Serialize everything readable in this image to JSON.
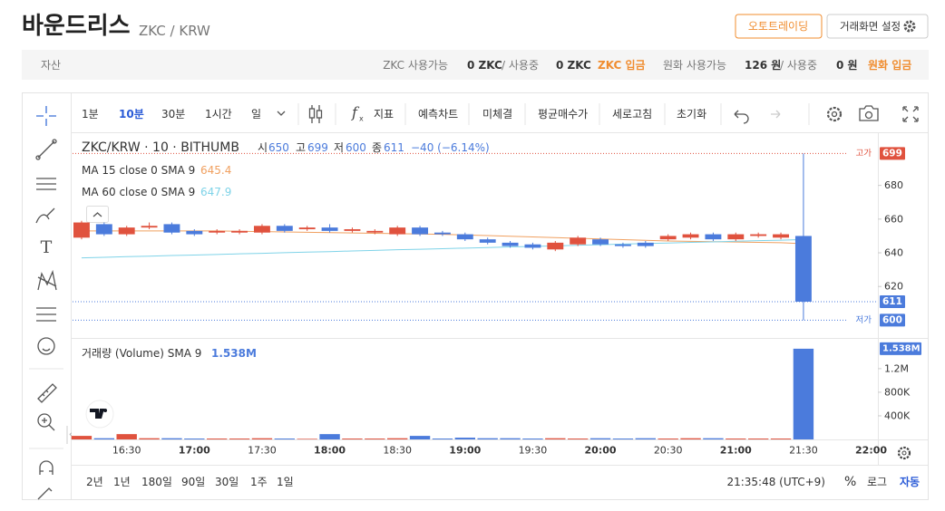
{
  "header": {
    "title": "바운드리스",
    "pair": "ZKC / KRW",
    "buttons": [
      "오토트레이딩",
      "거래화면 설정"
    ]
  },
  "assets": {
    "label": "자산",
    "items": [
      {
        "label": "ZKC 사용가능",
        "available": "0 ZKC",
        "in_use_label": "/ 사용중",
        "in_use": "0 ZKC",
        "deposit": "ZKC 입금"
      },
      {
        "label": "원화 사용가능",
        "available": "126 원",
        "in_use_label": "/ 사용중",
        "in_use": "0 원",
        "deposit": "원화 입금"
      }
    ]
  },
  "toolbar": {
    "intervals": [
      "1분",
      "10분",
      "30분",
      "1시간",
      "일"
    ],
    "fx": "f",
    "tools": [
      "지표",
      "예측차트",
      "미체결",
      "평균매수가",
      "세로고침",
      "초기화"
    ]
  },
  "chart_data": {
    "type": "candlestick",
    "title": "ZKC/KRW · 10 · BITHUMB",
    "ohlc_labels": [
      "시",
      "고",
      "저",
      "종"
    ],
    "change_label": "−40 (−6.14%)",
    "up_color": "#e0523e",
    "down_color": "#4b7bdc",
    "x": [
      "16:10",
      "16:20",
      "16:30",
      "16:40",
      "16:50",
      "17:00",
      "17:10",
      "17:20",
      "17:30",
      "17:40",
      "17:50",
      "18:00",
      "18:10",
      "18:20",
      "18:30",
      "18:40",
      "18:50",
      "19:00",
      "19:10",
      "19:20",
      "19:30",
      "19:40",
      "19:50",
      "20:00",
      "20:10",
      "20:20",
      "20:30",
      "20:40",
      "20:50",
      "21:00",
      "21:10",
      "21:20",
      "21:30"
    ],
    "open": [
      649,
      657,
      651,
      655,
      657,
      653,
      652,
      652,
      652,
      656,
      654,
      655,
      653,
      652,
      651,
      655,
      652,
      651,
      648,
      646,
      645,
      642,
      645,
      648,
      645,
      646,
      648,
      649,
      651,
      648,
      650,
      649,
      650
    ],
    "high": [
      659,
      658,
      656,
      658,
      658,
      654,
      654,
      654,
      657,
      657,
      656,
      657,
      655,
      654,
      656,
      656,
      653,
      652,
      649,
      647,
      646,
      647,
      650,
      649,
      646,
      647,
      651,
      652,
      652,
      652,
      652,
      652,
      699
    ],
    "low": [
      648,
      650,
      650,
      654,
      651,
      650,
      651,
      651,
      651,
      652,
      653,
      652,
      652,
      651,
      650,
      650,
      650,
      647,
      645,
      643,
      642,
      641,
      644,
      644,
      643,
      643,
      647,
      648,
      647,
      647,
      649,
      648,
      600
    ],
    "close": [
      658,
      651,
      655,
      656,
      652,
      651,
      653,
      653,
      656,
      653,
      655,
      653,
      654,
      653,
      655,
      651,
      651,
      648,
      646,
      644,
      643,
      646,
      649,
      645,
      644,
      644,
      650,
      651,
      648,
      651,
      651,
      651,
      611
    ],
    "xlim": [
      "16:06",
      "22:03"
    ],
    "xticks": [
      "16:30",
      "17:00",
      "17:30",
      "18:00",
      "18:30",
      "19:00",
      "19:30",
      "20:00",
      "20:30",
      "21:00",
      "21:30",
      "22:00"
    ],
    "ylim": [
      590,
      711
    ],
    "yticks": [
      620,
      640,
      660,
      680
    ],
    "high_label": "고가",
    "low_label": "저가",
    "series": [
      {
        "name": "MA 15 close 0 SMA 9",
        "color": "#f0a060",
        "values": [
          653,
          653,
          653,
          653,
          653,
          653,
          653,
          652.8,
          652.6,
          652.4,
          652.2,
          652,
          651.8,
          651.6,
          651.4,
          651.2,
          651,
          650.6,
          650.2,
          649.8,
          649.4,
          649,
          648.6,
          648.2,
          647.8,
          647.4,
          647,
          646.8,
          646.6,
          646.4,
          646.2,
          646,
          645.4
        ]
      },
      {
        "name": "MA 60 close 0 SMA 9",
        "color": "#7fd3e8",
        "values": [
          637,
          637.3,
          637.7,
          638,
          638.4,
          638.7,
          639,
          639.4,
          639.7,
          640.1,
          640.4,
          640.7,
          641.1,
          641.4,
          641.8,
          642.1,
          642.4,
          642.8,
          643.1,
          643.5,
          643.8,
          644.1,
          644.5,
          644.8,
          645.2,
          645.5,
          645.8,
          646.2,
          646.5,
          646.9,
          647.2,
          647.5,
          647.9
        ]
      }
    ],
    "volume": {
      "name": "거래량 (Volume) SMA 9",
      "value_label": "1.538M",
      "values": [
        60000,
        20000,
        90000,
        20000,
        20000,
        15000,
        15000,
        15000,
        20000,
        15000,
        10000,
        90000,
        15000,
        15000,
        20000,
        60000,
        15000,
        30000,
        20000,
        20000,
        15000,
        20000,
        15000,
        20000,
        15000,
        20000,
        15000,
        20000,
        20000,
        15000,
        15000,
        15000,
        1538000
      ],
      "ylim": [
        0,
        1690000
      ],
      "yticks": [
        {
          "value": 400000,
          "label": "400K"
        },
        {
          "value": 800000,
          "label": "800K"
        },
        {
          "value": 1200000,
          "label": "1.2M"
        }
      ]
    }
  },
  "footer": {
    "ranges": [
      "2년",
      "1년",
      "180일",
      "90일",
      "30일",
      "1주",
      "1일"
    ],
    "clock": "21:35:48 (UTC+9)",
    "options": [
      "%",
      "로그",
      "자동"
    ]
  }
}
